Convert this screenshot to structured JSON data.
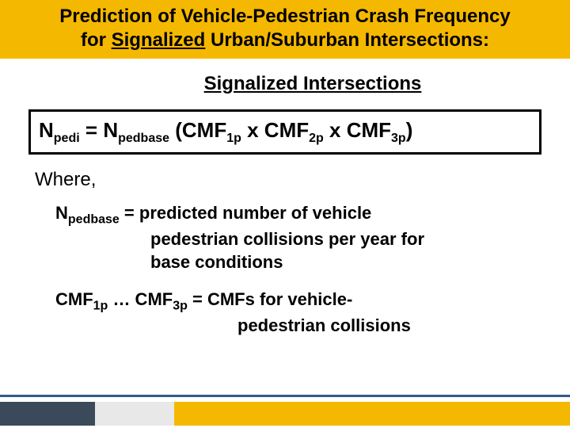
{
  "header": {
    "line1_a": "Prediction of Vehicle-Pedestrian Crash Frequency",
    "line2_a": "for ",
    "line2_u": "Signalized",
    "line2_b": " Urban/Suburban Intersections:"
  },
  "subheader": "Signalized Intersections",
  "formula": {
    "N": "N",
    "pedi": "pedi",
    "eq": " = ",
    "pedbase": "pedbase",
    "open": " (CMF",
    "s1p": "1p",
    "x1": " x CMF",
    "s2p": "2p",
    "x2": " x CMF",
    "s3p": "3p",
    "close": ")"
  },
  "where": "Where,",
  "def1": {
    "N": "N",
    "pedbase": "pedbase",
    "eq": " = predicted number of vehicle",
    "l2": "pedestrian collisions per year for",
    "l3": "base conditions"
  },
  "def2": {
    "a": "CMF",
    "s1p": "1p",
    "dots": " … CMF",
    "s3p": "3p",
    "eq": " = CMFs for vehicle-",
    "l2": "pedestrian collisions"
  },
  "colors": {
    "gold": "#f5b800",
    "blue_line": "#2d5c8a",
    "dark_block": "#3a4a5a",
    "light_block": "#e8e8e8",
    "background": "#ffffff"
  }
}
